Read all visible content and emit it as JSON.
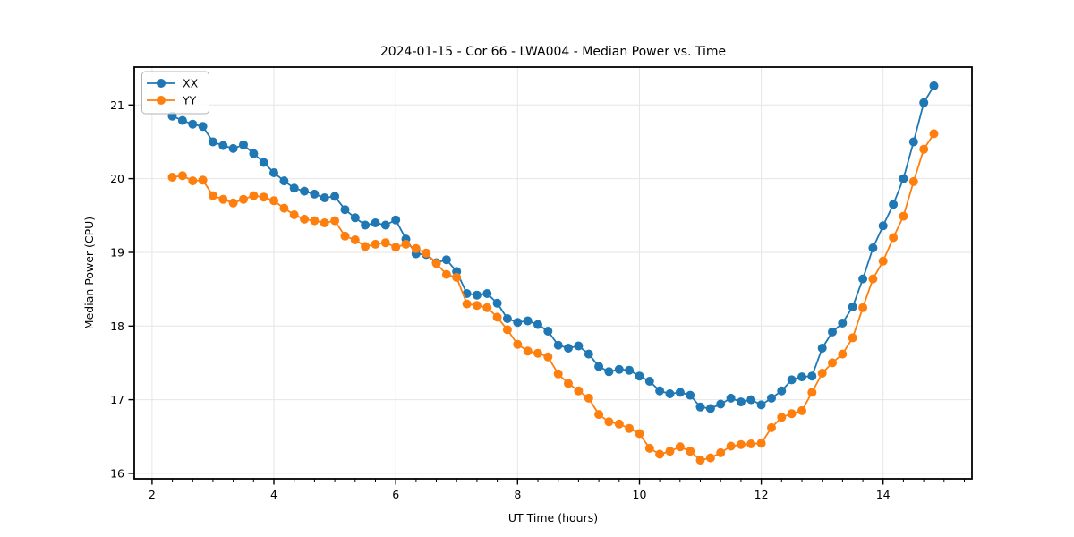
{
  "chart_data": {
    "type": "line",
    "title": "2024-01-15 - Cor 66 - LWA004 - Median Power vs. Time",
    "xlabel": "UT Time (hours)",
    "ylabel": "Median Power (CPU)",
    "grid": true,
    "legend_position": "upper left",
    "xlim": [
      1.708,
      15.458
    ],
    "ylim": [
      15.926,
      21.514
    ],
    "x_major_ticks": [
      2,
      4,
      6,
      8,
      10,
      12,
      14
    ],
    "x_minor_tick_step_hours": 0.3333,
    "y_major_ticks": [
      16,
      17,
      18,
      19,
      20,
      21
    ],
    "grid_color": "#e6e6e6",
    "x": [
      2.333,
      2.5,
      2.667,
      2.833,
      3.0,
      3.167,
      3.333,
      3.5,
      3.667,
      3.833,
      4.0,
      4.167,
      4.333,
      4.5,
      4.667,
      4.833,
      5.0,
      5.167,
      5.333,
      5.5,
      5.667,
      5.833,
      6.0,
      6.167,
      6.333,
      6.5,
      6.667,
      6.833,
      7.0,
      7.167,
      7.333,
      7.5,
      7.667,
      7.833,
      8.0,
      8.167,
      8.333,
      8.5,
      8.667,
      8.833,
      9.0,
      9.167,
      9.333,
      9.5,
      9.667,
      9.833,
      10.0,
      10.167,
      10.333,
      10.5,
      10.667,
      10.833,
      11.0,
      11.167,
      11.333,
      11.5,
      11.667,
      11.833,
      12.0,
      12.167,
      12.333,
      12.5,
      12.667,
      12.833,
      13.0,
      13.167,
      13.333,
      13.5,
      13.667,
      13.833,
      14.0,
      14.167,
      14.333,
      14.5,
      14.667,
      14.833
    ],
    "series": [
      {
        "name": "XX",
        "color": "#1f77b4",
        "values": [
          20.85,
          20.79,
          20.74,
          20.71,
          20.5,
          20.45,
          20.41,
          20.46,
          20.34,
          20.22,
          20.08,
          19.97,
          19.87,
          19.83,
          19.79,
          19.74,
          19.76,
          19.58,
          19.47,
          19.37,
          19.4,
          19.37,
          19.44,
          19.18,
          18.98,
          18.97,
          18.86,
          18.9,
          18.74,
          18.44,
          18.42,
          18.44,
          18.31,
          18.1,
          18.05,
          18.07,
          18.02,
          17.93,
          17.74,
          17.7,
          17.73,
          17.62,
          17.45,
          17.38,
          17.41,
          17.4,
          17.32,
          17.25,
          17.12,
          17.08,
          17.1,
          17.06,
          16.9,
          16.88,
          16.94,
          17.02,
          16.97,
          17.0,
          16.93,
          17.02,
          17.12,
          17.27,
          17.31,
          17.32,
          17.7,
          17.92,
          18.04,
          18.26,
          18.64,
          19.06,
          19.36,
          19.65,
          20.0,
          20.5,
          21.03,
          21.26
        ]
      },
      {
        "name": "YY",
        "color": "#ff7f0e",
        "values": [
          20.02,
          20.04,
          19.97,
          19.98,
          19.77,
          19.72,
          19.67,
          19.72,
          19.77,
          19.75,
          19.7,
          19.6,
          19.51,
          19.45,
          19.43,
          19.4,
          19.43,
          19.22,
          19.17,
          19.08,
          19.11,
          19.13,
          19.07,
          19.11,
          19.05,
          18.99,
          18.85,
          18.7,
          18.66,
          18.3,
          18.28,
          18.25,
          18.12,
          17.95,
          17.75,
          17.66,
          17.63,
          17.58,
          17.35,
          17.22,
          17.12,
          17.02,
          16.8,
          16.7,
          16.67,
          16.61,
          16.54,
          16.34,
          16.26,
          16.3,
          16.36,
          16.3,
          16.18,
          16.21,
          16.28,
          16.37,
          16.39,
          16.4,
          16.41,
          16.62,
          16.76,
          16.81,
          16.85,
          17.1,
          17.36,
          17.5,
          17.62,
          17.84,
          18.25,
          18.64,
          18.88,
          19.2,
          19.49,
          19.96,
          20.4,
          20.61
        ]
      }
    ]
  },
  "legend": {
    "items": [
      {
        "label": "XX",
        "color": "#1f77b4"
      },
      {
        "label": "YY",
        "color": "#ff7f0e"
      }
    ]
  }
}
